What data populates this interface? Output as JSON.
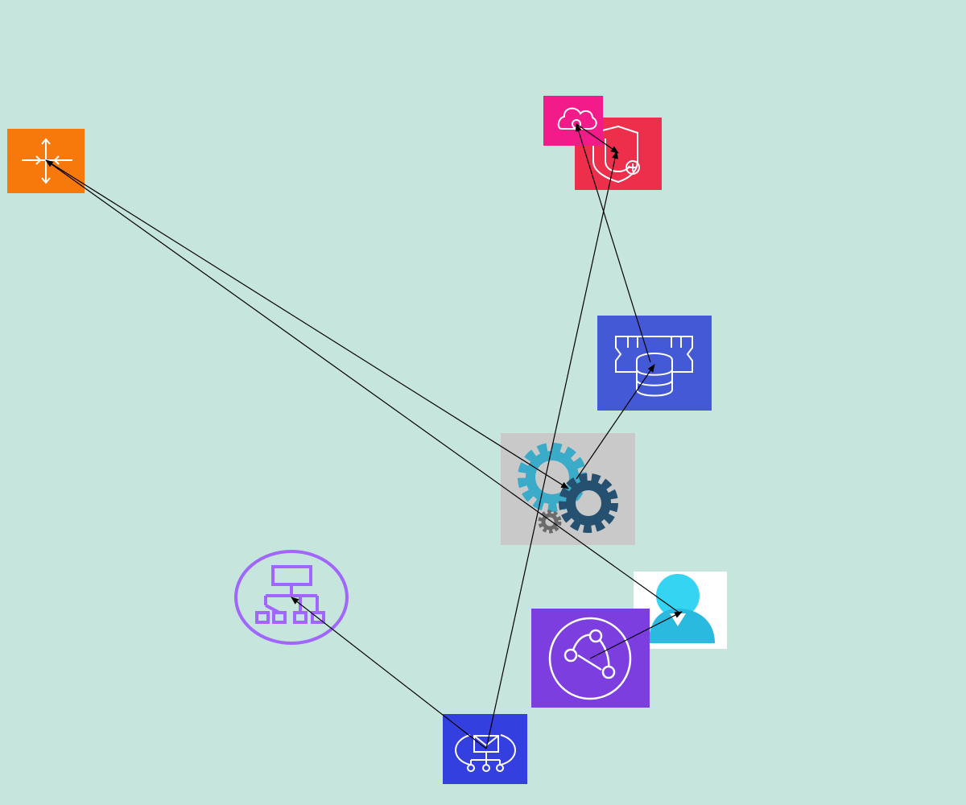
{
  "background_color": "#c6e5dd",
  "nodes": [
    {
      "id": "n1",
      "icon": "elastic-load-balancing-icon",
      "color": "#f7790b"
    },
    {
      "id": "n2",
      "icon": "cloud-service-icon",
      "color": "#f31a8a"
    },
    {
      "id": "n3",
      "icon": "security-shield-add-icon",
      "color": "#ee2f4b"
    },
    {
      "id": "n4",
      "icon": "memory-database-icon",
      "color": "#4359d6"
    },
    {
      "id": "n5",
      "icon": "gears-icon",
      "color": "#c9c9c9"
    },
    {
      "id": "n6",
      "icon": "user-icon",
      "color": "#ffffff"
    },
    {
      "id": "n7",
      "icon": "cloudfront-icon",
      "color": "#7c3ede"
    },
    {
      "id": "n8",
      "icon": "hierarchy-icon",
      "color": "#a166ff"
    },
    {
      "id": "n9",
      "icon": "notification-service-icon",
      "color": "#343fe0"
    }
  ],
  "edges": [
    {
      "from": "n1",
      "to": "n5"
    },
    {
      "from": "n6",
      "to": "n1"
    },
    {
      "from": "n2",
      "to": "n3"
    },
    {
      "from": "n4",
      "to": "n2"
    },
    {
      "from": "n5",
      "to": "n4"
    },
    {
      "from": "n9",
      "to": "n3"
    },
    {
      "from": "n9",
      "to": "n8"
    },
    {
      "from": "n7",
      "to": "n6"
    }
  ]
}
